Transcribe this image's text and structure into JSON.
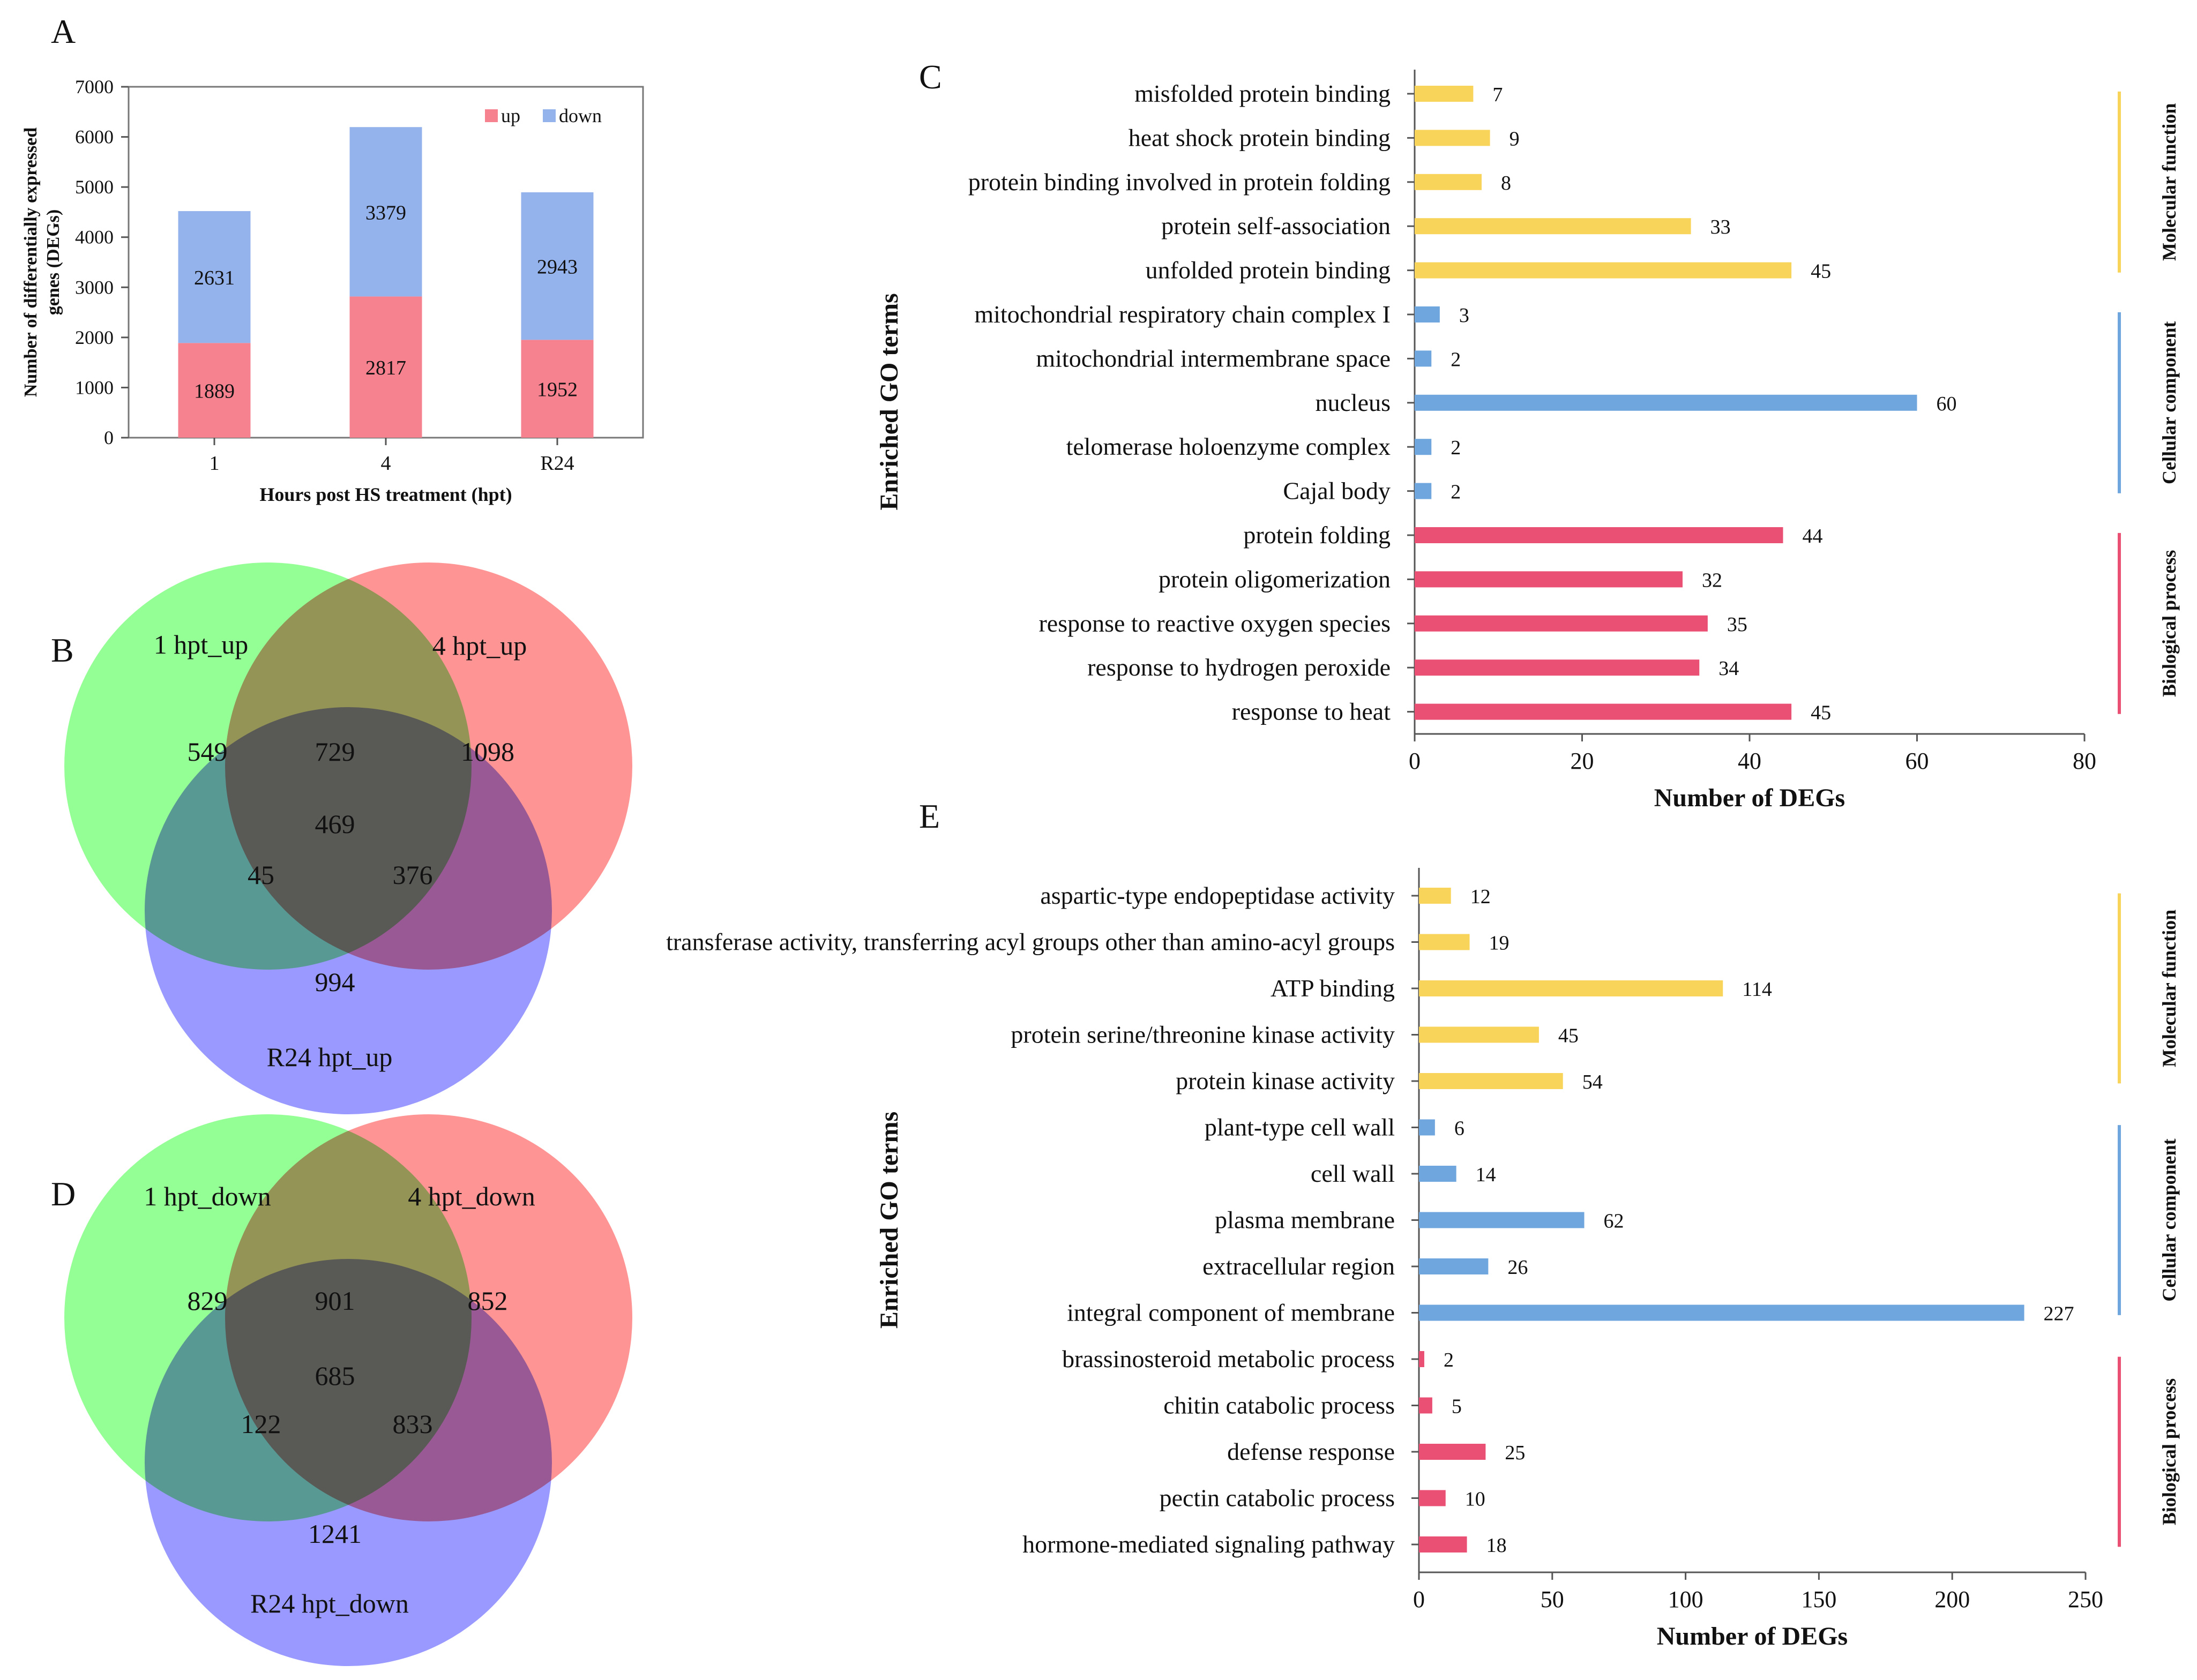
{
  "panel_labels": {
    "A": "A",
    "B": "B",
    "C": "C",
    "D": "D",
    "E": "E"
  },
  "colors": {
    "up": "#f7828f",
    "down": "#94b3ec",
    "mf": "#f9d45a",
    "cc": "#6fa6dd",
    "bp": "#ea4f74",
    "venn1": "#3cff3c",
    "venn2": "#ff3c3c",
    "venn3": "#4646ff"
  },
  "chart_data": [
    {
      "id": "A",
      "type": "bar",
      "stacked": true,
      "categories": [
        "1",
        "4",
        "R24"
      ],
      "series": [
        {
          "name": "up",
          "values": [
            1889,
            2817,
            1952
          ]
        },
        {
          "name": "down",
          "values": [
            2631,
            3379,
            2943
          ]
        }
      ],
      "xlabel": "Hours post HS treatment (hpt)",
      "ylabel": "Number of differentially expressed genes (DEGs)",
      "ylabel_lines": [
        "Number of differentially expressed",
        "genes (DEGs)"
      ],
      "ylim": [
        0,
        7000
      ],
      "yticks": [
        "0",
        "1000",
        "2000",
        "3000",
        "4000",
        "5000",
        "6000",
        "7000"
      ],
      "legend_position": "top-right"
    },
    {
      "id": "C",
      "type": "bar",
      "orientation": "horizontal",
      "ylabel": "Enriched GO terms",
      "xlabel": "Number of DEGs",
      "xlim": [
        0,
        80
      ],
      "xticks": [
        "0",
        "20",
        "40",
        "60",
        "80"
      ],
      "terms": [
        {
          "label": "misfolded protein binding",
          "value": 7,
          "category": "mf"
        },
        {
          "label": "heat shock protein binding",
          "value": 9,
          "category": "mf"
        },
        {
          "label": "protein binding involved in protein folding",
          "value": 8,
          "category": "mf"
        },
        {
          "label": "protein self-association",
          "value": 33,
          "category": "mf"
        },
        {
          "label": "unfolded protein binding",
          "value": 45,
          "category": "mf"
        },
        {
          "label": "mitochondrial respiratory chain complex I",
          "value": 3,
          "category": "cc"
        },
        {
          "label": "mitochondrial intermembrane space",
          "value": 2,
          "category": "cc"
        },
        {
          "label": "nucleus",
          "value": 60,
          "category": "cc"
        },
        {
          "label": "telomerase holoenzyme complex",
          "value": 2,
          "category": "cc"
        },
        {
          "label": "Cajal body",
          "value": 2,
          "category": "cc"
        },
        {
          "label": "protein folding",
          "value": 44,
          "category": "bp"
        },
        {
          "label": "protein oligomerization",
          "value": 32,
          "category": "bp"
        },
        {
          "label": "response to reactive oxygen species",
          "value": 35,
          "category": "bp"
        },
        {
          "label": "response to hydrogen peroxide",
          "value": 34,
          "category": "bp"
        },
        {
          "label": "response to heat",
          "value": 45,
          "category": "bp"
        }
      ],
      "groups": [
        {
          "key": "mf",
          "name": "Molecular function"
        },
        {
          "key": "cc",
          "name": "Cellular component"
        },
        {
          "key": "bp",
          "name": "Biological process"
        }
      ]
    },
    {
      "id": "E",
      "type": "bar",
      "orientation": "horizontal",
      "ylabel": "Enriched GO terms",
      "xlabel": "Number of DEGs",
      "xlim": [
        0,
        250
      ],
      "xticks": [
        "0",
        "50",
        "100",
        "150",
        "200",
        "250"
      ],
      "terms": [
        {
          "label": "aspartic-type endopeptidase activity",
          "value": 12,
          "category": "mf"
        },
        {
          "label": "transferase activity, transferring acyl groups other than amino-acyl groups",
          "value": 19,
          "category": "mf"
        },
        {
          "label": "ATP binding",
          "value": 114,
          "category": "mf"
        },
        {
          "label": "protein serine/threonine kinase activity",
          "value": 45,
          "category": "mf"
        },
        {
          "label": "protein kinase activity",
          "value": 54,
          "category": "mf"
        },
        {
          "label": "plant-type cell wall",
          "value": 6,
          "category": "cc"
        },
        {
          "label": "cell wall",
          "value": 14,
          "category": "cc"
        },
        {
          "label": "plasma membrane",
          "value": 62,
          "category": "cc"
        },
        {
          "label": "extracellular region",
          "value": 26,
          "category": "cc"
        },
        {
          "label": "integral component of membrane",
          "value": 227,
          "category": "cc"
        },
        {
          "label": "brassinosteroid metabolic process",
          "value": 2,
          "category": "bp"
        },
        {
          "label": "chitin catabolic process",
          "value": 5,
          "category": "bp"
        },
        {
          "label": "defense response",
          "value": 25,
          "category": "bp"
        },
        {
          "label": "pectin catabolic process",
          "value": 10,
          "category": "bp"
        },
        {
          "label": "hormone-mediated signaling pathway",
          "value": 18,
          "category": "bp"
        }
      ],
      "groups": [
        {
          "key": "mf",
          "name": "Molecular function"
        },
        {
          "key": "cc",
          "name": "Cellular component"
        },
        {
          "key": "bp",
          "name": "Biological process"
        }
      ]
    },
    {
      "id": "B",
      "type": "venn",
      "sets": [
        "1 hpt_up",
        "4 hpt_up",
        "R24 hpt_up"
      ],
      "regions": {
        "only1": 549,
        "only2": 1098,
        "only3": 994,
        "s12": 729,
        "s13": 45,
        "s23": 376,
        "s123": 469
      }
    },
    {
      "id": "D",
      "type": "venn",
      "sets": [
        "1 hpt_down",
        "4 hpt_down",
        "R24 hpt_down"
      ],
      "regions": {
        "only1": 829,
        "only2": 852,
        "only3": 1241,
        "s12": 901,
        "s13": 122,
        "s23": 833,
        "s123": 685
      }
    }
  ]
}
